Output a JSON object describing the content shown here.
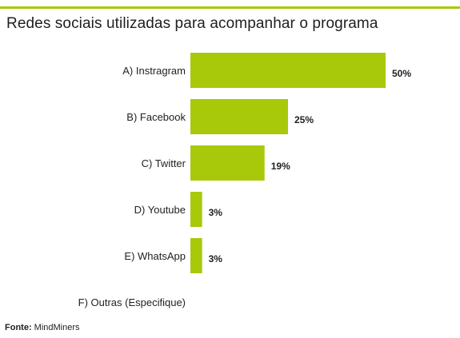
{
  "colors": {
    "accent": "#a8c80a",
    "text": "#222222"
  },
  "chart_data": {
    "type": "bar",
    "orientation": "horizontal",
    "title": "Redes sociais utilizadas para acompanhar o programa",
    "categories": [
      "A) Instragram",
      "B) Facebook",
      "C) Twitter",
      "D) Youtube",
      "E) WhatsApp",
      "F) Outras (Especifique)"
    ],
    "values": [
      50,
      25,
      19,
      3,
      3,
      null
    ],
    "value_labels": [
      "50%",
      "25%",
      "19%",
      "3%",
      "3%",
      ""
    ],
    "xlim": [
      0,
      50
    ],
    "grid": false,
    "legend": "none"
  },
  "source": {
    "label": "Fonte:",
    "text": "MindMiners"
  }
}
